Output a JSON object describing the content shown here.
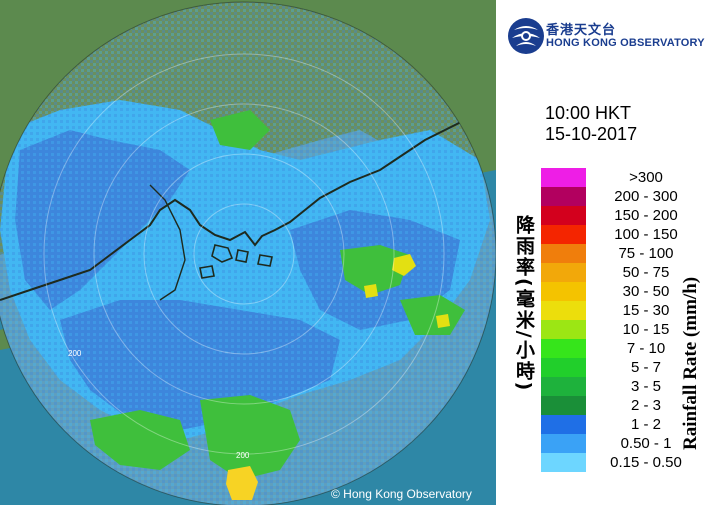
{
  "map": {
    "copyright": "© Hong Kong Observatory",
    "range_ring_label": "200",
    "colors": {
      "sea": "#2e87a6",
      "land": "#5c8a4e",
      "radar_disc": "#5f9fbe",
      "echo_light": "#42b7f2",
      "echo_medium": "#3d86dc",
      "echo_green": "#3fbf3c",
      "echo_yellow": "#f7d324",
      "coast": "#1e2a1e"
    }
  },
  "header": {
    "logo_chinese": "香港天文台",
    "logo_english": "HONG KONG OBSERVATORY",
    "logo_icon": "hko-logo-icon"
  },
  "timestamp": {
    "time": "10:00 HKT",
    "date": "15-10-2017"
  },
  "legend": {
    "title_chinese": "降雨率(毫米/小時)",
    "title_english": "Rainfall Rate (mm/h)",
    "items": [
      {
        "label": ">300",
        "color": "#ee1ee6"
      },
      {
        "label": "200 - 300",
        "color": "#b2005f"
      },
      {
        "label": "150 - 200",
        "color": "#d3001d"
      },
      {
        "label": "100 - 150",
        "color": "#f42500"
      },
      {
        "label": "75 - 100",
        "color": "#f07e0c"
      },
      {
        "label": "50 - 75",
        "color": "#f2a80a"
      },
      {
        "label": "30 - 50",
        "color": "#f4c300"
      },
      {
        "label": "15 - 30",
        "color": "#ecde0c"
      },
      {
        "label": "10 - 15",
        "color": "#9ce614"
      },
      {
        "label": "7 - 10",
        "color": "#36e51b"
      },
      {
        "label": "5 - 7",
        "color": "#21cf2b"
      },
      {
        "label": "3 - 5",
        "color": "#1eb23c"
      },
      {
        "label": "2 - 3",
        "color": "#1a8f38"
      },
      {
        "label": "1 - 2",
        "color": "#1f6fe6"
      },
      {
        "label": "0.50 - 1",
        "color": "#3aa2f6"
      },
      {
        "label": "0.15 - 0.50",
        "color": "#6dd6ff"
      }
    ]
  }
}
